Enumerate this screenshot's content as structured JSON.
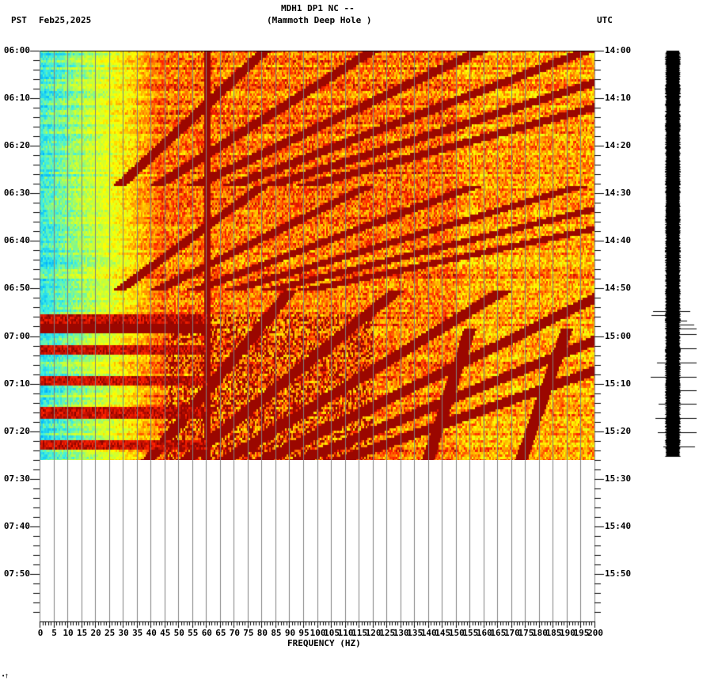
{
  "header": {
    "station_line": "MDH1 DP1 NC --",
    "location_line": "(Mammoth Deep Hole )",
    "left_timezone": "PST",
    "date": "Feb25,2025",
    "right_timezone": "UTC"
  },
  "corner_mark": "•†",
  "chart_data": {
    "type": "heatmap",
    "title": "MDH1 DP1 NC -- (Mammoth Deep Hole ) spectrogram",
    "xlabel": "FREQUENCY (HZ)",
    "ylabel_left": "PST",
    "ylabel_right": "UTC",
    "xlim": [
      0,
      200
    ],
    "x_ticks": [
      0,
      5,
      10,
      15,
      20,
      25,
      30,
      35,
      40,
      45,
      50,
      55,
      60,
      65,
      70,
      75,
      80,
      85,
      90,
      95,
      100,
      105,
      110,
      115,
      120,
      125,
      130,
      135,
      140,
      145,
      150,
      155,
      160,
      165,
      170,
      175,
      180,
      185,
      190,
      195,
      200
    ],
    "x_tick_labels": [
      "0",
      "5",
      "10",
      "15",
      "20",
      "25",
      "30",
      "35",
      "40",
      "45",
      "50",
      "55",
      "60",
      "65",
      "70",
      "75",
      "80",
      "85",
      "90",
      "95",
      "100",
      "105",
      "110",
      "115",
      "120",
      "125",
      "130",
      "135",
      "140",
      "145",
      "150",
      "155",
      "160",
      "165",
      "170",
      "175",
      "180",
      "185",
      "190",
      "195",
      "200"
    ],
    "y_ticks_left": [
      "06:00",
      "06:10",
      "06:20",
      "06:30",
      "06:40",
      "06:50",
      "07:00",
      "07:10",
      "07:20",
      "07:30",
      "07:40",
      "07:50"
    ],
    "y_ticks_right": [
      "14:00",
      "14:10",
      "14:20",
      "14:30",
      "14:40",
      "14:50",
      "15:00",
      "15:10",
      "15:20",
      "15:30",
      "15:40",
      "15:50"
    ],
    "time_range_pst": [
      "06:00",
      "08:00"
    ],
    "data_end_pst": "07:26",
    "minor_tick_minutes": 2,
    "colormap": [
      "#0050ff",
      "#00b4ff",
      "#40f0e0",
      "#c0ff40",
      "#ffff00",
      "#ffa000",
      "#ff2000",
      "#800000"
    ],
    "features": {
      "low_freq_band_hz": [
        0,
        20
      ],
      "low_freq_level": "low (blue/cyan)",
      "persistent_line_hz": 60,
      "sweeping_harmonics": "curved high-energy (dark red) streaks repeating every ~28 min, starting 06:00-06:28 and 06:28-06:50, then denser after 06:55",
      "broadband_event_start_pst": "06:55",
      "horizontal_stripes_0_30hz_after": "06:55",
      "diagonal_features_hz": [
        [
          140,
          155
        ],
        [
          175,
          190
        ]
      ]
    },
    "waveform_trace": {
      "position": "right of spectrogram",
      "quiet_until_pst": "06:55",
      "spikes_after_pst": "06:55"
    }
  }
}
